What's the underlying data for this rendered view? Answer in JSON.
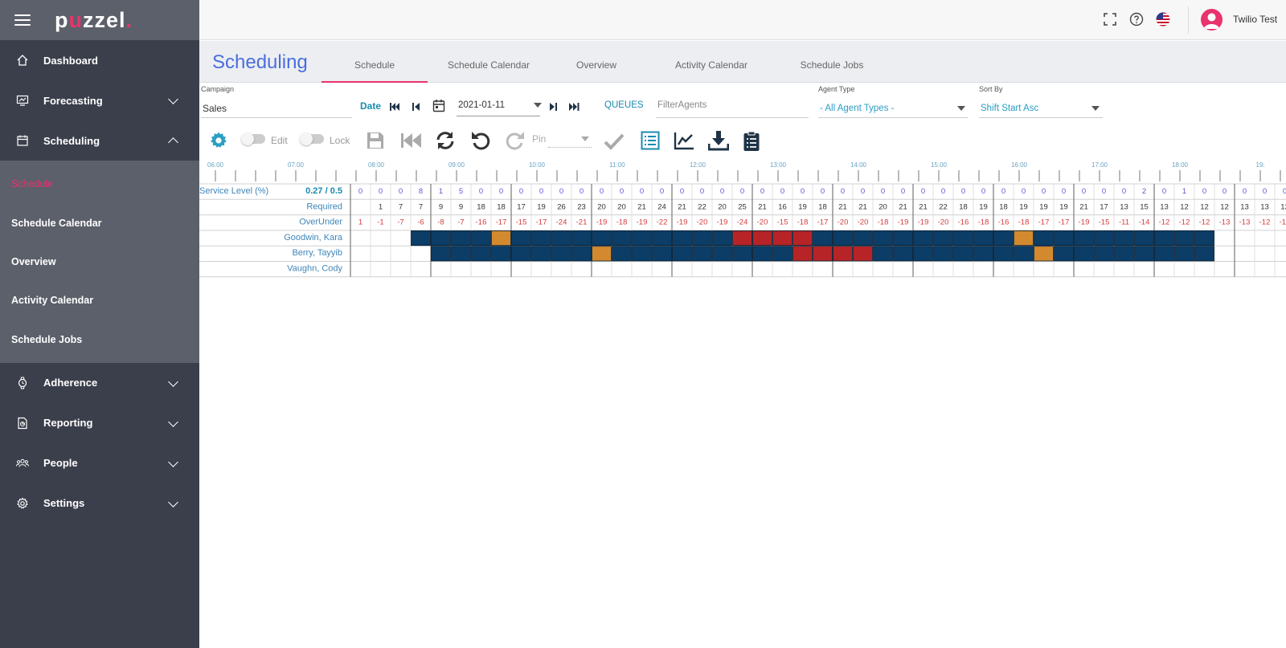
{
  "app": {
    "logo_pre": "p",
    "logo_dot": "u",
    "logo_post": "zzel",
    "logo_end": "."
  },
  "sidebar": {
    "items": [
      {
        "label": "Dashboard",
        "icon": "home-icon"
      },
      {
        "label": "Forecasting",
        "icon": "forecast-icon"
      },
      {
        "label": "Scheduling",
        "icon": "calendar-icon"
      },
      {
        "label": "Adherence",
        "icon": "watch-icon"
      },
      {
        "label": "Reporting",
        "icon": "report-icon"
      },
      {
        "label": "People",
        "icon": "people-icon"
      },
      {
        "label": "Settings",
        "icon": "gear-icon"
      }
    ],
    "sub_items": [
      "Schedule",
      "Schedule Calendar",
      "Overview",
      "Activity Calendar",
      "Schedule Jobs"
    ]
  },
  "topbar": {
    "username": "Twilio Test"
  },
  "page": {
    "title": "Scheduling",
    "tabs": [
      "Schedule",
      "Schedule Calendar",
      "Overview",
      "Activity Calendar",
      "Schedule Jobs"
    ]
  },
  "filters": {
    "campaign_label": "Campaign",
    "campaign_value": "Sales",
    "date_label": "Date",
    "date_value": "2021-01-11",
    "queues_label": "QUEUES",
    "filter_agents_placeholder": "FilterAgents",
    "agent_type_label": "Agent Type",
    "agent_type_value": "- All Agent Types -",
    "sort_by_label": "Sort By",
    "sort_by_value": "Shift Start Asc"
  },
  "toolbar": {
    "edit_label": "Edit",
    "lock_label": "Lock",
    "pin_label": "Pin"
  },
  "grid": {
    "hours": [
      "06:00",
      "07:00",
      "08:00",
      "09:00",
      "10:00",
      "11:00",
      "12:00",
      "13:00",
      "14:00",
      "15:00",
      "16:00",
      "17:00",
      "18:00",
      "19:"
    ],
    "service_level_label": "Service Level (%)",
    "service_level_value": "0.27 / 0.5",
    "required_label": "Required",
    "overunder_label": "OverUnder",
    "service_values": [
      "0",
      "0",
      "0",
      "8",
      "1",
      "5",
      "0",
      "0",
      "0",
      "0",
      "0",
      "0",
      "0",
      "0",
      "0",
      "0",
      "0",
      "0",
      "0",
      "0",
      "0",
      "0",
      "0",
      "0",
      "0",
      "0",
      "0",
      "0",
      "0",
      "0",
      "0",
      "0",
      "0",
      "0",
      "0",
      "0",
      "0",
      "0",
      "0",
      "2",
      "0",
      "1",
      "0",
      "0",
      "0",
      "0",
      "0",
      "0"
    ],
    "required_values": [
      "",
      "1",
      "7",
      "7",
      "9",
      "9",
      "18",
      "18",
      "17",
      "19",
      "26",
      "23",
      "20",
      "20",
      "21",
      "24",
      "21",
      "22",
      "20",
      "25",
      "21",
      "16",
      "19",
      "18",
      "21",
      "21",
      "20",
      "21",
      "21",
      "22",
      "18",
      "19",
      "18",
      "19",
      "19",
      "19",
      "21",
      "17",
      "13",
      "15",
      "13",
      "12",
      "12",
      "12",
      "13",
      "13",
      "12",
      ""
    ],
    "overunder_values": [
      "1",
      "-1",
      "-7",
      "-6",
      "-8",
      "-7",
      "-16",
      "-17",
      "-15",
      "-17",
      "-24",
      "-21",
      "-19",
      "-18",
      "-19",
      "-22",
      "-19",
      "-20",
      "-19",
      "-24",
      "-20",
      "-15",
      "-18",
      "-17",
      "-20",
      "-20",
      "-18",
      "-19",
      "-19",
      "-20",
      "-16",
      "-18",
      "-16",
      "-18",
      "-17",
      "-17",
      "-19",
      "-15",
      "-11",
      "-14",
      "-12",
      "-12",
      "-12",
      "-13",
      "-13",
      "-12",
      "-12",
      ""
    ],
    "agents": [
      {
        "name": "Goodwin, Kara",
        "cells": "...BBBBOBBBBBBBBBBBRRRRBBBBBBBBBBOBBBBBBBBB......."
      },
      {
        "name": "Berry, Tayyib",
        "cells": "....BBBBBBBBOBBBBBBBBBRRRRBBBBBBBBOBBBBBBBB......"
      },
      {
        "name": "Vaughn, Cody",
        "cells": "................................................"
      }
    ],
    "colors": {
      "B": "#0b3d66",
      "O": "#d38a2e",
      "R": "#b62427"
    }
  }
}
